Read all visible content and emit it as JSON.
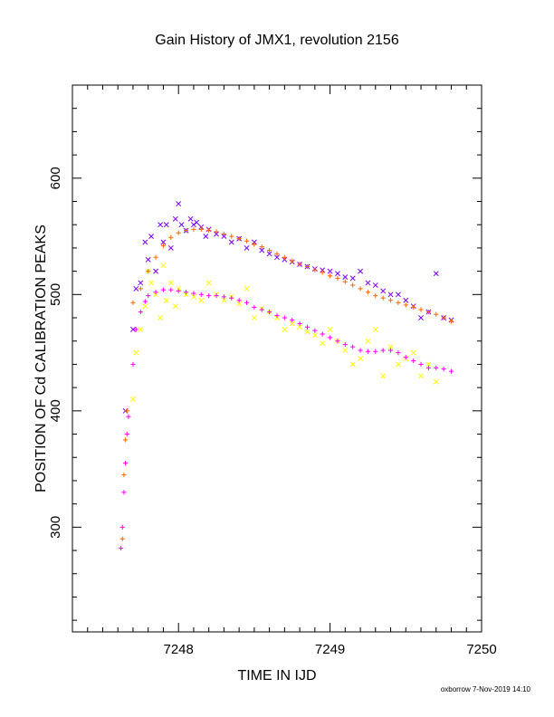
{
  "chart_data": {
    "type": "scatter",
    "title": "Gain History of JMX1, revolution 2156",
    "xlabel": "TIME IN IJD",
    "ylabel": "POSITION OF Cd CALIBRATION PEAKS",
    "xlim": [
      7247.3,
      7250.0
    ],
    "ylim": [
      210,
      680
    ],
    "xticks": [
      7248,
      7249,
      7250
    ],
    "yticks": [
      300,
      400,
      500,
      600
    ],
    "grid": false,
    "legend": "none",
    "footer": "oxborrow  7-Nov-2019 14:10",
    "series": [
      {
        "marker": "x",
        "color": "#7b00ff",
        "x": [
          7247.65,
          7247.7,
          7247.72,
          7247.75,
          7247.78,
          7247.8,
          7247.82,
          7247.85,
          7247.88,
          7247.9,
          7247.92,
          7247.95,
          7247.98,
          7248.0,
          7248.02,
          7248.05,
          7248.08,
          7248.1,
          7248.12,
          7248.15,
          7248.18,
          7248.2,
          7248.25,
          7248.3,
          7248.35,
          7248.4,
          7248.45,
          7248.5,
          7248.55,
          7248.6,
          7248.65,
          7248.7,
          7248.75,
          7248.8,
          7248.85,
          7248.9,
          7248.95,
          7249.0,
          7249.05,
          7249.1,
          7249.15,
          7249.2,
          7249.25,
          7249.3,
          7249.35,
          7249.4,
          7249.45,
          7249.5,
          7249.55,
          7249.6,
          7249.65,
          7249.7,
          7249.75,
          7249.8
        ],
        "y": [
          400,
          470,
          505,
          510,
          545,
          530,
          550,
          520,
          560,
          545,
          560,
          540,
          565,
          578,
          560,
          555,
          565,
          560,
          562,
          558,
          550,
          556,
          552,
          550,
          545,
          548,
          540,
          545,
          538,
          535,
          532,
          530,
          528,
          526,
          524,
          522,
          521,
          520,
          518,
          515,
          514,
          520,
          510,
          508,
          503,
          500,
          500,
          495,
          490,
          480,
          485,
          518,
          480,
          478
        ]
      },
      {
        "marker": "x",
        "color": "#ffff00",
        "x": [
          7247.7,
          7247.72,
          7247.75,
          7247.78,
          7247.8,
          7247.82,
          7247.85,
          7247.88,
          7247.9,
          7247.92,
          7247.95,
          7247.98,
          7248.0,
          7248.05,
          7248.1,
          7248.15,
          7248.2,
          7248.25,
          7248.3,
          7248.35,
          7248.4,
          7248.45,
          7248.5,
          7248.55,
          7248.6,
          7248.65,
          7248.7,
          7248.75,
          7248.8,
          7248.85,
          7248.9,
          7248.95,
          7249.0,
          7249.05,
          7249.1,
          7249.15,
          7249.2,
          7249.25,
          7249.3,
          7249.35,
          7249.4,
          7249.45,
          7249.5,
          7249.55,
          7249.6,
          7249.65,
          7249.7
        ],
        "y": [
          410,
          450,
          470,
          490,
          520,
          510,
          500,
          480,
          525,
          495,
          510,
          490,
          505,
          500,
          498,
          495,
          510,
          500,
          495,
          498,
          492,
          505,
          480,
          488,
          485,
          480,
          470,
          475,
          472,
          468,
          465,
          458,
          470,
          460,
          452,
          440,
          445,
          460,
          470,
          430,
          455,
          440,
          445,
          450,
          430,
          440,
          425
        ]
      },
      {
        "marker": "+",
        "color": "#ff6600",
        "x": [
          7247.63,
          7247.64,
          7247.65,
          7247.66,
          7247.7,
          7247.75,
          7247.8,
          7247.85,
          7247.9,
          7247.95,
          7248.0,
          7248.05,
          7248.1,
          7248.15,
          7248.2,
          7248.25,
          7248.3,
          7248.35,
          7248.4,
          7248.45,
          7248.5,
          7248.55,
          7248.6,
          7248.65,
          7248.7,
          7248.75,
          7248.8,
          7248.85,
          7248.9,
          7248.95,
          7249.0,
          7249.05,
          7249.1,
          7249.15,
          7249.2,
          7249.25,
          7249.3,
          7249.35,
          7249.4,
          7249.45,
          7249.5,
          7249.55,
          7249.6,
          7249.65,
          7249.7,
          7249.75,
          7249.8
        ],
        "y": [
          290,
          345,
          375,
          400,
          493,
          505,
          520,
          532,
          542,
          549,
          553,
          555,
          556,
          556,
          555,
          554,
          552,
          550,
          548,
          546,
          543,
          541,
          538,
          535,
          532,
          529,
          526,
          524,
          521,
          519,
          516,
          514,
          511,
          508,
          505,
          502,
          499,
          497,
          495,
          493,
          491,
          489,
          487,
          485,
          483,
          480,
          477
        ]
      },
      {
        "marker": "+",
        "color": "#ff00ff",
        "x": [
          7247.62,
          7247.63,
          7247.64,
          7247.65,
          7247.66,
          7247.67,
          7247.7,
          7247.72,
          7247.75,
          7247.78,
          7247.8,
          7247.85,
          7247.9,
          7247.95,
          7248.0,
          7248.05,
          7248.1,
          7248.15,
          7248.2,
          7248.25,
          7248.3,
          7248.35,
          7248.4,
          7248.45,
          7248.5,
          7248.55,
          7248.6,
          7248.65,
          7248.7,
          7248.75,
          7248.8,
          7248.85,
          7248.9,
          7248.95,
          7249.0,
          7249.05,
          7249.1,
          7249.15,
          7249.2,
          7249.25,
          7249.3,
          7249.35,
          7249.4,
          7249.45,
          7249.5,
          7249.55,
          7249.6,
          7249.65,
          7249.7,
          7249.75,
          7249.8
        ],
        "y": [
          282,
          300,
          330,
          355,
          380,
          395,
          440,
          470,
          485,
          494,
          499,
          502,
          504,
          504,
          503,
          502,
          501,
          500,
          499,
          499,
          498,
          497,
          495,
          493,
          489,
          487,
          485,
          482,
          480,
          478,
          475,
          472,
          469,
          466,
          463,
          460,
          457,
          455,
          452,
          451,
          451,
          452,
          452,
          450,
          446,
          443,
          440,
          437,
          437,
          436,
          434
        ]
      }
    ]
  }
}
